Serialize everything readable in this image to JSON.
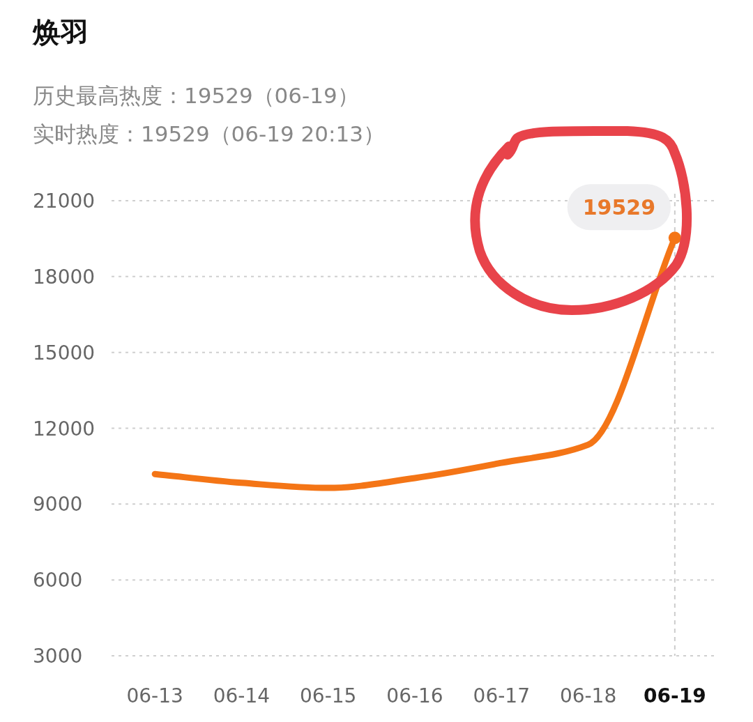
{
  "chart_data": {
    "type": "line",
    "title": "焕羽",
    "subtitle": "历史最高热度：19529（06-19）",
    "categories": [
      "06-13",
      "06-14",
      "06-15",
      "06-16",
      "06-17",
      "06-18",
      "06-19"
    ],
    "series": [
      {
        "color": "#f47516",
        "values": [
          10190,
          9840,
          9640,
          10030,
          10630,
          11350,
          19529
        ]
      }
    ],
    "ylim": [
      3000,
      21000
    ],
    "yticks": [
      3000,
      6000,
      9000,
      12000,
      15000,
      18000,
      21000
    ],
    "grid": "y",
    "line_style": "solid",
    "marker": "none",
    "ref_lines": [
      {
        "axis": "x",
        "value": "06-19",
        "label": null,
        "color": "#cccccc",
        "line_style": "dashed"
      }
    ],
    "annotations": [
      "实时热度：19529（06-19 20:13）",
      {
        "text": "19529",
        "x": "06-19",
        "y": 19529
      }
    ]
  }
}
